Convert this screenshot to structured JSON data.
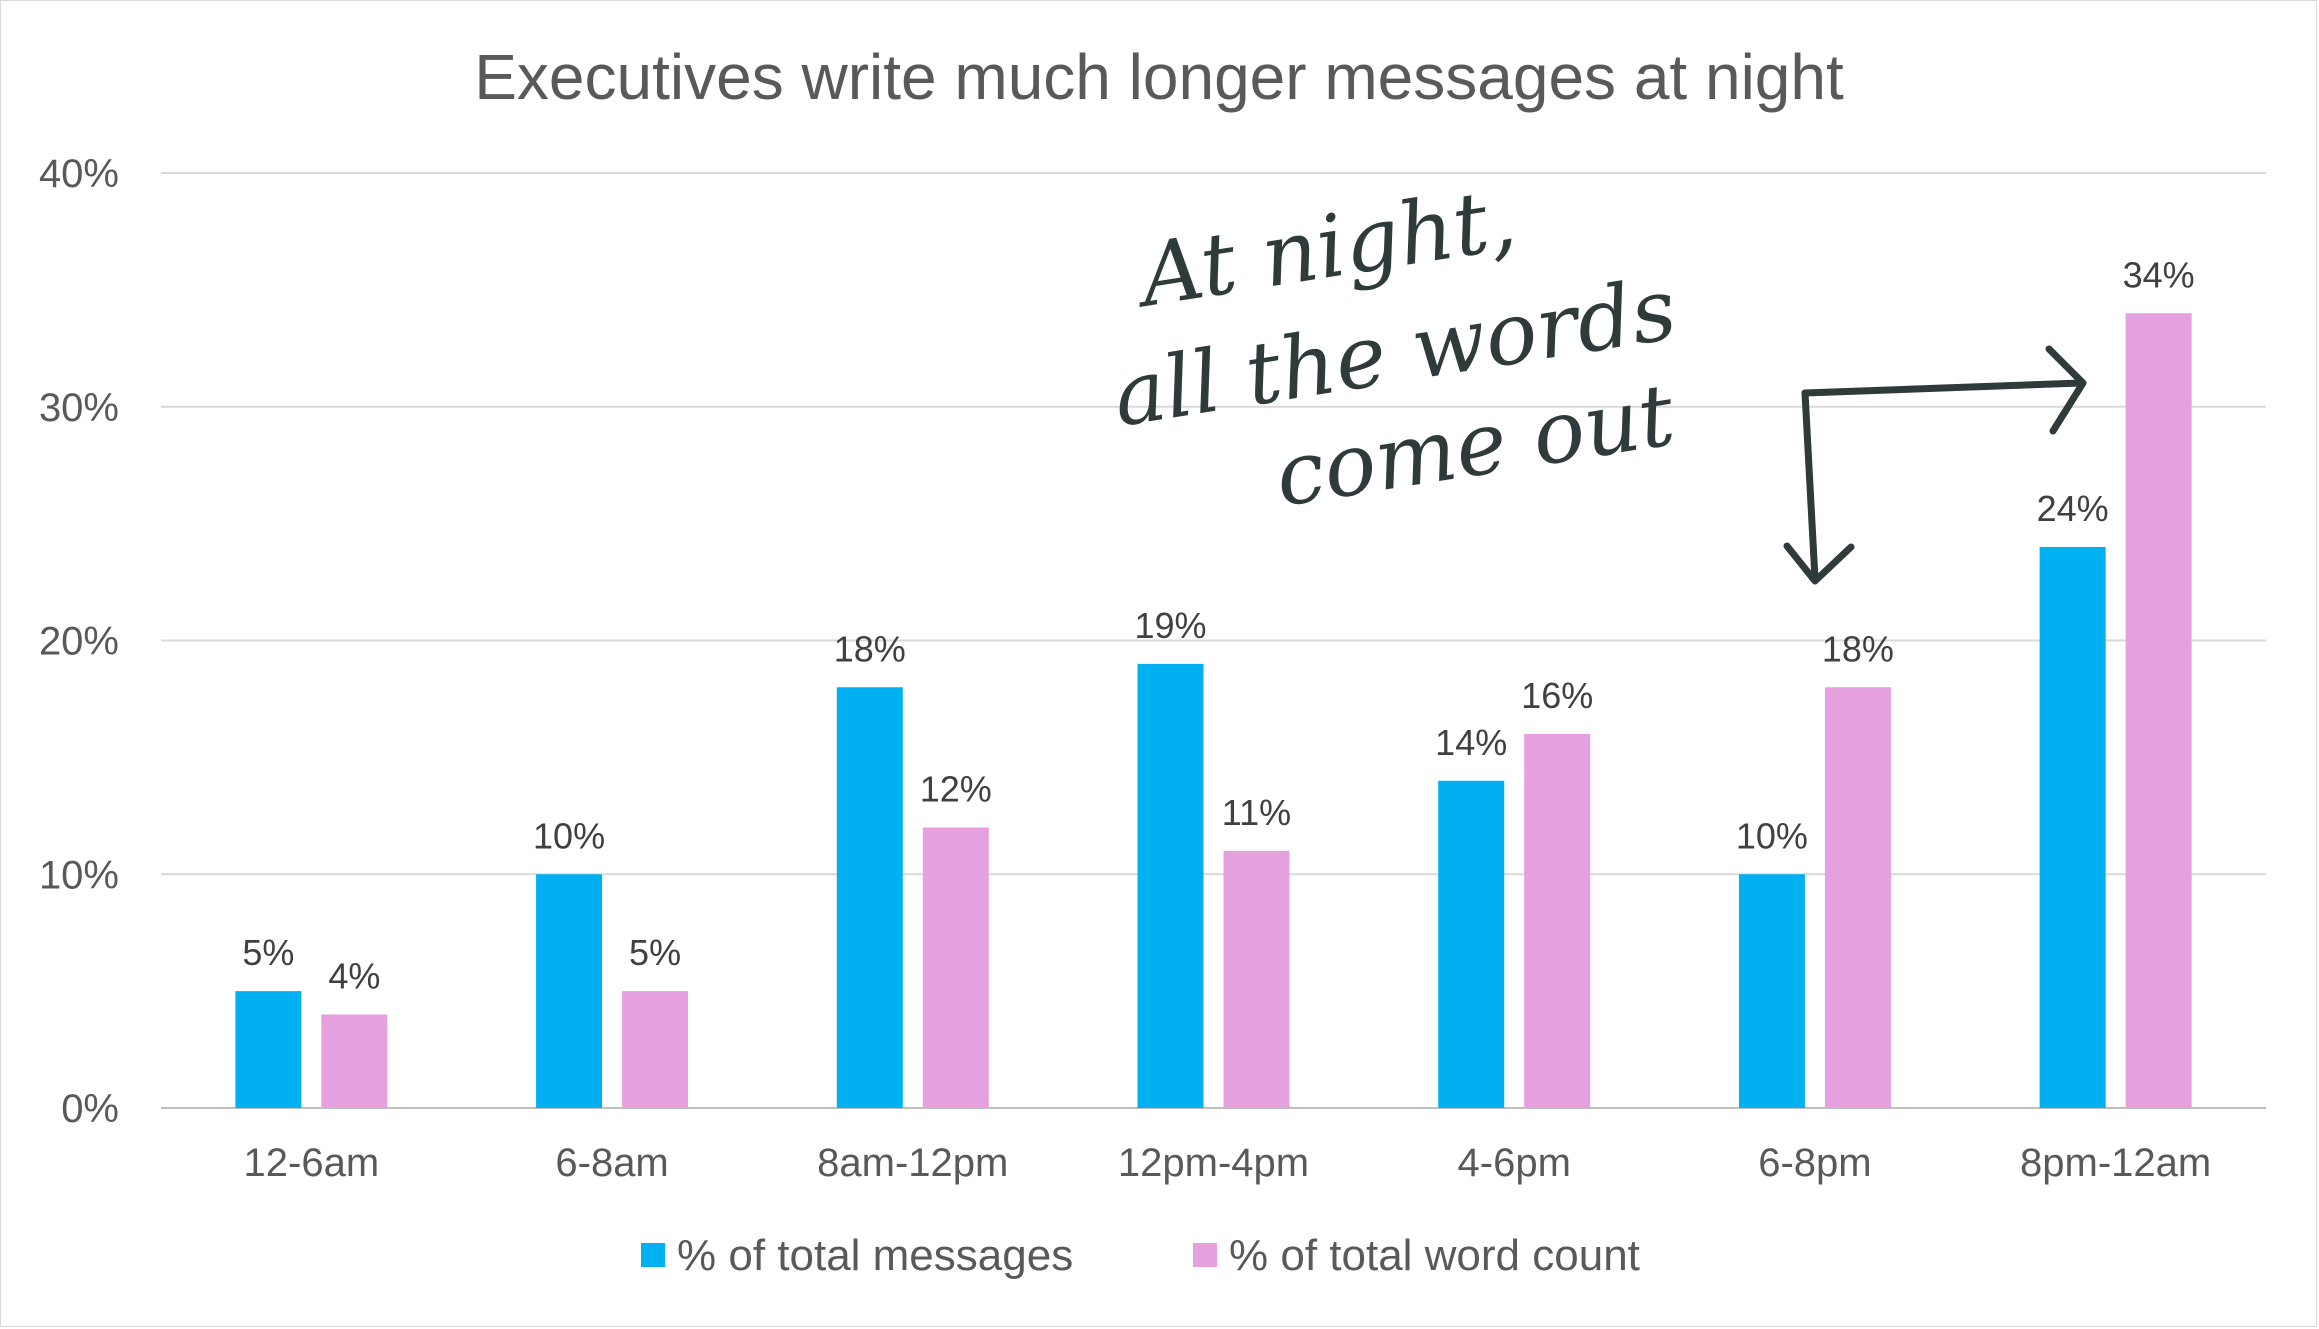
{
  "chart_data": {
    "type": "bar",
    "title": "Executives write much longer messages at night",
    "categories": [
      "12-6am",
      "6-8am",
      "8am-12pm",
      "12pm-4pm",
      "4-6pm",
      "6-8pm",
      "8pm-12am"
    ],
    "series": [
      {
        "name": "% of total messages",
        "color": "#00b0f0",
        "values": [
          5,
          10,
          18,
          19,
          14,
          10,
          24
        ]
      },
      {
        "name": "% of total word count",
        "color": "#e4a0df",
        "values": [
          4,
          5,
          12,
          11,
          16,
          18,
          34
        ]
      }
    ],
    "y_ticks": [
      "0%",
      "10%",
      "20%",
      "30%",
      "40%"
    ],
    "ylim": [
      0,
      40
    ],
    "grid": true,
    "legend": "bottom",
    "annotation": [
      "At night,",
      "all the words",
      "come out"
    ]
  }
}
